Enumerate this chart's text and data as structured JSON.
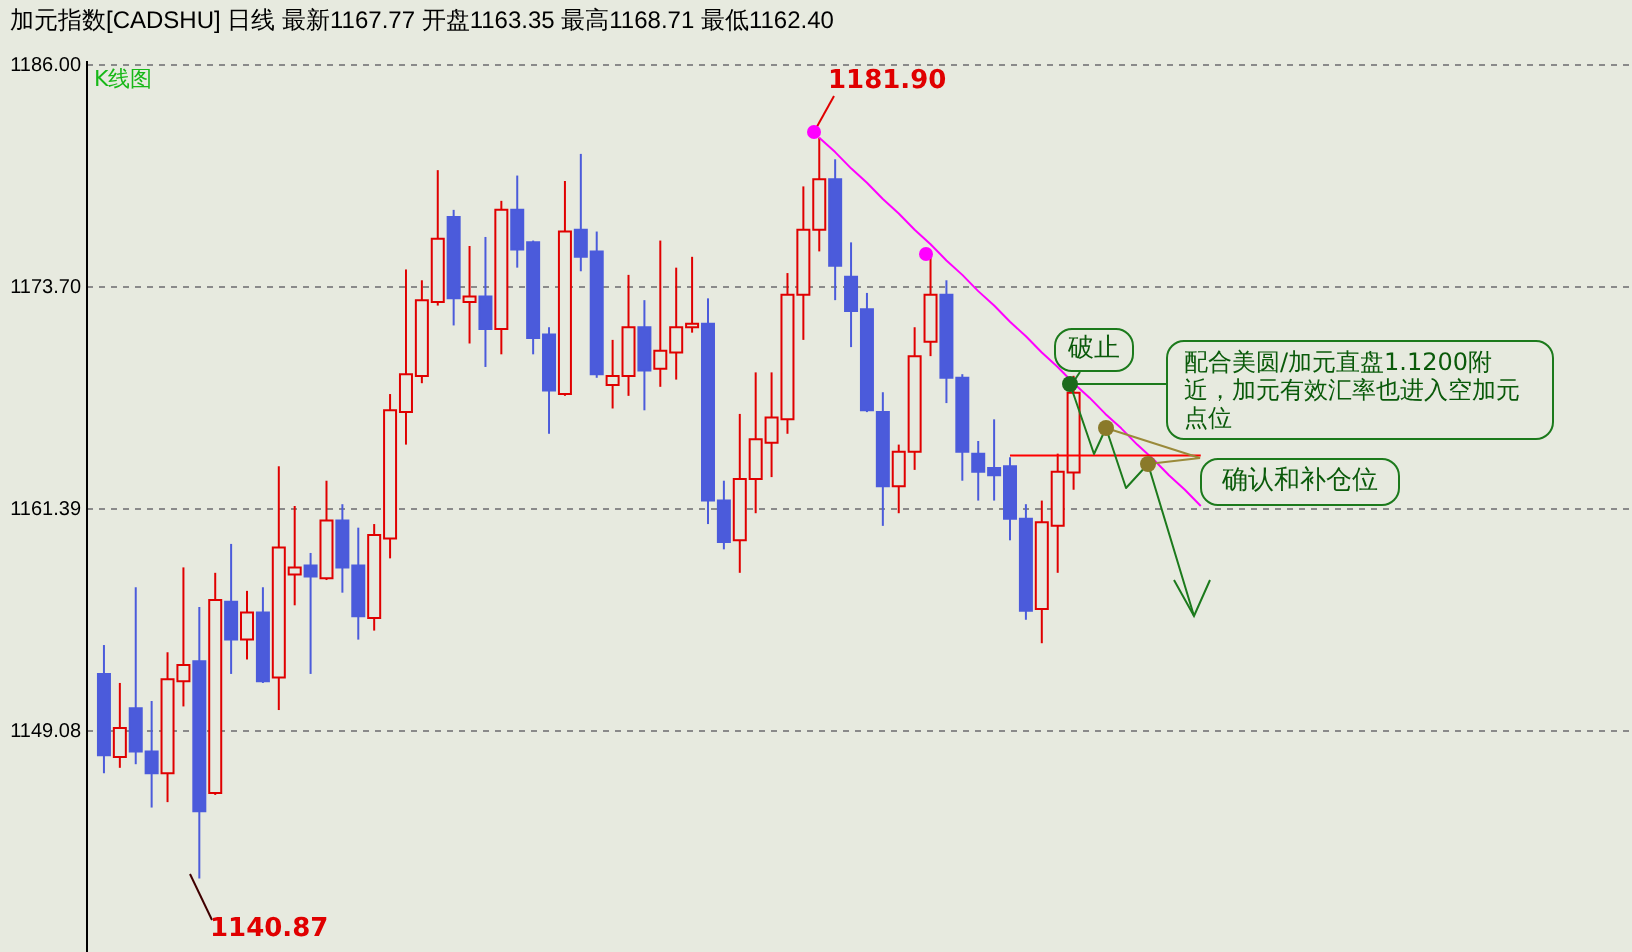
{
  "chart_data": {
    "type": "candlestick",
    "title": "加元指数[CADSHU]    日线    最新1167.77 开盘1163.35 最高1168.71 最低1162.40",
    "subtitle": "K线图",
    "categories": [
      null,
      null,
      null,
      null,
      null,
      null,
      null,
      null,
      null,
      null,
      null,
      null,
      null,
      null,
      null,
      null,
      null,
      null,
      null,
      null,
      null,
      null,
      null,
      null,
      null,
      null,
      null,
      null,
      null,
      null,
      null,
      null,
      null,
      null,
      null,
      null,
      null,
      null,
      null,
      null,
      null,
      null,
      null,
      null,
      null,
      null,
      null,
      null,
      null,
      null,
      null,
      null,
      null,
      null,
      null,
      null,
      null,
      null,
      null,
      null,
      null,
      null,
      null,
      null,
      null,
      null,
      null,
      null,
      null,
      null,
      null,
      null,
      null,
      null,
      null,
      null,
      null,
      null,
      null,
      null,
      null,
      null,
      null,
      null,
      null,
      null,
      null,
      null,
      null,
      null,
      null,
      null,
      null,
      null,
      null,
      null
    ],
    "ohlc": [
      [
        1152.2,
        1153.8,
        1146.7,
        1147.7
      ],
      [
        1147.6,
        1151.7,
        1147.0,
        1149.2
      ],
      [
        1150.3,
        1157.0,
        1147.2,
        1147.9
      ],
      [
        1147.9,
        1150.7,
        1144.8,
        1146.7
      ],
      [
        1146.7,
        1153.4,
        1145.1,
        1151.9
      ],
      [
        1151.8,
        1158.1,
        1150.4,
        1152.7
      ],
      [
        1152.9,
        1155.9,
        1140.87,
        1144.6
      ],
      [
        1145.6,
        1157.8,
        1145.5,
        1156.3
      ],
      [
        1156.2,
        1159.4,
        1152.2,
        1154.1
      ],
      [
        1154.1,
        1156.8,
        1153.0,
        1155.6
      ],
      [
        1155.6,
        1157.0,
        1151.7,
        1151.8
      ],
      [
        1152.0,
        1163.7,
        1150.2,
        1159.2
      ],
      [
        1157.7,
        1161.5,
        1156.0,
        1158.1
      ],
      [
        1158.2,
        1158.9,
        1152.2,
        1157.6
      ],
      [
        1157.5,
        1162.9,
        1157.4,
        1160.7
      ],
      [
        1160.7,
        1161.6,
        1156.7,
        1158.1
      ],
      [
        1158.2,
        1160.3,
        1154.1,
        1155.4
      ],
      [
        1155.3,
        1160.5,
        1154.6,
        1159.9
      ],
      [
        1159.7,
        1167.7,
        1158.6,
        1166.8
      ],
      [
        1166.7,
        1174.6,
        1164.9,
        1168.8
      ],
      [
        1168.7,
        1174.0,
        1168.3,
        1172.9
      ],
      [
        1172.8,
        1180.1,
        1172.6,
        1176.3
      ],
      [
        1177.5,
        1177.9,
        1171.5,
        1173.0
      ],
      [
        1172.8,
        1175.9,
        1170.5,
        1173.1
      ],
      [
        1173.1,
        1176.4,
        1169.2,
        1171.3
      ],
      [
        1171.3,
        1178.4,
        1169.9,
        1177.9
      ],
      [
        1177.9,
        1179.8,
        1174.7,
        1175.7
      ],
      [
        1176.1,
        1176.2,
        1169.9,
        1170.8
      ],
      [
        1171.0,
        1171.4,
        1165.5,
        1167.9
      ],
      [
        1167.7,
        1179.5,
        1167.6,
        1176.7
      ],
      [
        1176.8,
        1181.0,
        1174.5,
        1175.3
      ],
      [
        1175.6,
        1176.7,
        1168.6,
        1168.8
      ],
      [
        1168.2,
        1170.7,
        1166.9,
        1168.7
      ],
      [
        1168.7,
        1174.3,
        1167.6,
        1171.4
      ],
      [
        1171.4,
        1172.9,
        1166.8,
        1169.0
      ],
      [
        1169.1,
        1176.2,
        1168.1,
        1170.1
      ],
      [
        1170.0,
        1174.7,
        1168.5,
        1171.4
      ],
      [
        1171.4,
        1175.3,
        1171.1,
        1171.6
      ],
      [
        1171.6,
        1173.0,
        1160.5,
        1161.8
      ],
      [
        1161.8,
        1162.9,
        1159.1,
        1159.5
      ],
      [
        1159.6,
        1166.6,
        1157.8,
        1163.0
      ],
      [
        1163.0,
        1168.9,
        1161.1,
        1165.2
      ],
      [
        1165.0,
        1168.9,
        1163.1,
        1166.4
      ],
      [
        1166.3,
        1174.4,
        1165.5,
        1173.2
      ],
      [
        1173.2,
        1179.2,
        1170.7,
        1176.8
      ],
      [
        1176.8,
        1181.9,
        1175.6,
        1179.6
      ],
      [
        1179.6,
        1180.7,
        1172.9,
        1174.8
      ],
      [
        1174.2,
        1176.1,
        1170.3,
        1172.3
      ],
      [
        1172.4,
        1173.3,
        1166.7,
        1166.8
      ],
      [
        1166.7,
        1167.8,
        1160.4,
        1162.6
      ],
      [
        1162.6,
        1164.9,
        1161.1,
        1164.5
      ],
      [
        1164.5,
        1171.4,
        1163.5,
        1169.8
      ],
      [
        1170.6,
        1175.4,
        1169.8,
        1173.2
      ],
      [
        1173.2,
        1174.0,
        1167.2,
        1168.6
      ],
      [
        1168.6,
        1168.8,
        1162.9,
        1164.5
      ],
      [
        1164.4,
        1165.1,
        1161.8,
        1163.4
      ],
      [
        1163.6,
        1166.3,
        1161.8,
        1163.2
      ],
      [
        1163.7,
        1164.2,
        1159.6,
        1160.8
      ],
      [
        1160.8,
        1161.6,
        1155.2,
        1155.7
      ],
      [
        1155.8,
        1161.8,
        1153.9,
        1160.6
      ],
      [
        1160.4,
        1164.4,
        1157.8,
        1163.4
      ],
      [
        1163.35,
        1168.71,
        1162.4,
        1167.77
      ],
      null,
      null,
      null,
      null,
      null,
      null,
      null,
      null,
      null,
      null,
      null,
      null,
      null,
      null,
      null,
      null,
      null,
      null,
      null,
      null,
      null,
      null,
      null,
      null,
      null,
      null,
      null,
      null,
      null,
      null,
      null,
      null,
      null,
      null
    ],
    "colors": [
      "#4b5bdb",
      "#e00000",
      "#4b5bdb",
      "#4b5bdb",
      "#e00000",
      "#e00000",
      "#4b5bdb",
      "#e00000",
      "#4b5bdb",
      "#e00000",
      "#4b5bdb",
      "#e00000",
      "#e00000",
      "#4b5bdb",
      "#e00000",
      "#4b5bdb",
      "#4b5bdb",
      "#e00000",
      "#e00000",
      "#e00000",
      "#e00000",
      "#e00000",
      "#4b5bdb",
      "#e00000",
      "#4b5bdb",
      "#e00000",
      "#4b5bdb",
      "#4b5bdb",
      "#4b5bdb",
      "#e00000",
      "#4b5bdb",
      "#4b5bdb",
      "#e00000",
      "#e00000",
      "#4b5bdb",
      "#e00000",
      "#e00000",
      "#e00000",
      "#4b5bdb",
      "#4b5bdb",
      "#e00000",
      "#e00000",
      "#e00000",
      "#e00000",
      "#e00000",
      "#e00000",
      "#4b5bdb",
      "#4b5bdb",
      "#4b5bdb",
      "#4b5bdb",
      "#e00000",
      "#e00000",
      "#e00000",
      "#4b5bdb",
      "#4b5bdb",
      "#4b5bdb",
      "#4b5bdb",
      "#4b5bdb",
      "#4b5bdb",
      "#e00000",
      "#e00000",
      "#e00000",
      null,
      null,
      null,
      null,
      null,
      null,
      null,
      null,
      null,
      null,
      null,
      null,
      null,
      null,
      null,
      null,
      null,
      null,
      null,
      null,
      null,
      null,
      null,
      null,
      null,
      null,
      null,
      null,
      null,
      null,
      null,
      null,
      null,
      null
    ],
    "series": [
      {
        "type": "line",
        "color": "#ff00ff",
        "values": [
          null,
          null,
          null,
          null,
          null,
          null,
          null,
          null,
          null,
          null,
          null,
          null,
          null,
          null,
          null,
          null,
          null,
          null,
          null,
          null,
          null,
          null,
          null,
          null,
          null,
          null,
          null,
          null,
          null,
          null,
          null,
          null,
          null,
          null,
          null,
          null,
          null,
          null,
          null,
          null,
          null,
          null,
          null,
          null,
          null,
          1181.9,
          1181.1,
          1180.2,
          1179.4,
          1178.5,
          1177.7,
          1176.8,
          1176.0,
          1175.1,
          1174.3,
          1173.4,
          1172.6,
          1171.7,
          1170.9,
          1170.0,
          1169.2,
          1168.3,
          1167.5,
          1166.6,
          1165.8,
          1164.9,
          1164.1,
          1163.2,
          1162.4,
          1161.5,
          null,
          null,
          null,
          null,
          null,
          null,
          null,
          null,
          null,
          null,
          null,
          null,
          null,
          null,
          null,
          null,
          null,
          null,
          null,
          null,
          null,
          null,
          null,
          null,
          null,
          null
        ]
      },
      {
        "type": "line",
        "color": "#ff0000",
        "values": [
          null,
          null,
          null,
          null,
          null,
          null,
          null,
          null,
          null,
          null,
          null,
          null,
          null,
          null,
          null,
          null,
          null,
          null,
          null,
          null,
          null,
          null,
          null,
          null,
          null,
          null,
          null,
          null,
          null,
          null,
          null,
          null,
          null,
          null,
          null,
          null,
          null,
          null,
          null,
          null,
          null,
          null,
          null,
          null,
          null,
          null,
          null,
          null,
          null,
          null,
          null,
          null,
          null,
          null,
          null,
          null,
          null,
          1164.3,
          1164.3,
          1164.3,
          1164.3,
          1164.3,
          1164.3,
          1164.3,
          1164.3,
          1164.3,
          1164.3,
          1164.3,
          1164.3,
          1164.3,
          null,
          null,
          null,
          null,
          null,
          null,
          null,
          null,
          null,
          null,
          null,
          null,
          null,
          null,
          null,
          null,
          null,
          null,
          null,
          null,
          null,
          null,
          null,
          null,
          null,
          null
        ]
      }
    ],
    "ylim": [
      1136.8,
      1186.2
    ],
    "yticks": [
      {
        "value": 1186,
        "label": "1186.00"
      },
      {
        "value": 1173.7,
        "label": "1173.70"
      },
      {
        "value": 1161.39,
        "label": "1161.39"
      },
      {
        "value": 1149.08,
        "label": "1149.08"
      }
    ],
    "grid": "y",
    "tick_labels": "y",
    "annotations": [
      "1181.90",
      "1140.87",
      "破止",
      "配合美圆/加元直盘1.1200附近，加元有效汇率也进入空加元点位",
      "确认和补仓位"
    ]
  }
}
